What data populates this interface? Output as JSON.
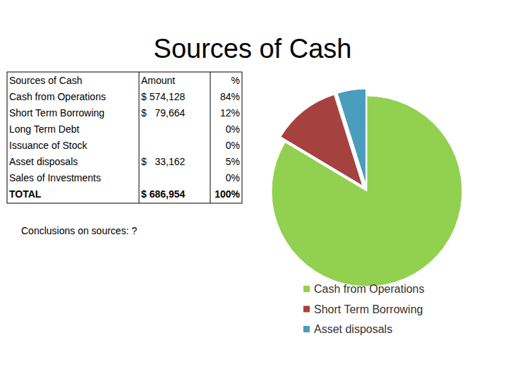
{
  "title": "Sources of Cash",
  "table": {
    "header": [
      "Sources of Cash",
      "Amount",
      "%"
    ],
    "rows": [
      [
        "Cash from Operations",
        "$ 574,128",
        "84%"
      ],
      [
        "Short Term Borrowing",
        "$   79,664",
        "12%"
      ],
      [
        "Long Term Debt",
        null,
        "0%"
      ],
      [
        "Issuance of Stock",
        null,
        "0%"
      ],
      [
        "Asset disposals",
        "$   33,162",
        "5%"
      ],
      [
        "Sales of Investments",
        null,
        "0%"
      ],
      [
        "TOTAL",
        "$ 686,954",
        "100%"
      ]
    ]
  },
  "note": "Conclusions on sources: ?",
  "chart_data": {
    "type": "pie",
    "categories": [
      "Cash from Operations",
      "Short Term Borrowing",
      "Asset disposals"
    ],
    "values": [
      574128,
      79664,
      33162
    ],
    "colors": [
      "#92d050",
      "#a5423f",
      "#4a9dbd"
    ],
    "legend": "bottom"
  }
}
